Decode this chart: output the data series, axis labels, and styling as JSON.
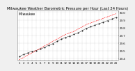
{
  "title": "Milwaukee Weather Barometric Pressure per Hour (Last 24 Hours)",
  "title_fontsize": 3.8,
  "background_color": "#f0f0f0",
  "plot_bg_color": "#ffffff",
  "grid_color": "#aaaaaa",
  "x_labels": [
    "1",
    "2",
    "3",
    "4",
    "5",
    "6",
    "7",
    "8",
    "9",
    "10",
    "11",
    "12",
    "13",
    "14",
    "15",
    "16",
    "17",
    "18",
    "19",
    "20",
    "21",
    "22",
    "23",
    "24"
  ],
  "hours": [
    1,
    2,
    3,
    4,
    5,
    6,
    7,
    8,
    9,
    10,
    11,
    12,
    13,
    14,
    15,
    16,
    17,
    18,
    19,
    20,
    21,
    22,
    23,
    24
  ],
  "pressure": [
    29.42,
    29.45,
    29.47,
    29.49,
    29.5,
    29.52,
    29.54,
    29.57,
    29.59,
    29.62,
    29.65,
    29.67,
    29.69,
    29.71,
    29.73,
    29.76,
    29.79,
    29.81,
    29.83,
    29.85,
    29.87,
    29.89,
    29.91,
    29.93
  ],
  "trend_pressure": [
    29.38,
    29.41,
    29.44,
    29.47,
    29.5,
    29.53,
    29.56,
    29.59,
    29.62,
    29.65,
    29.68,
    29.71,
    29.73,
    29.75,
    29.78,
    29.81,
    29.84,
    29.86,
    29.88,
    29.9,
    29.92,
    29.94,
    29.96,
    29.98
  ],
  "ylim": [
    29.38,
    30.02
  ],
  "ytick_labels": [
    "29.4",
    "29.5",
    "29.6",
    "29.7",
    "29.8",
    "29.9",
    "30.0"
  ],
  "ytick_values": [
    29.4,
    29.5,
    29.6,
    29.7,
    29.8,
    29.9,
    30.0
  ],
  "data_color": "#222222",
  "trend_color": "#ff0000",
  "marker_size": 1.2,
  "line_width": 0.5,
  "tick_fontsize": 2.8,
  "left_label": "Milwaukee"
}
